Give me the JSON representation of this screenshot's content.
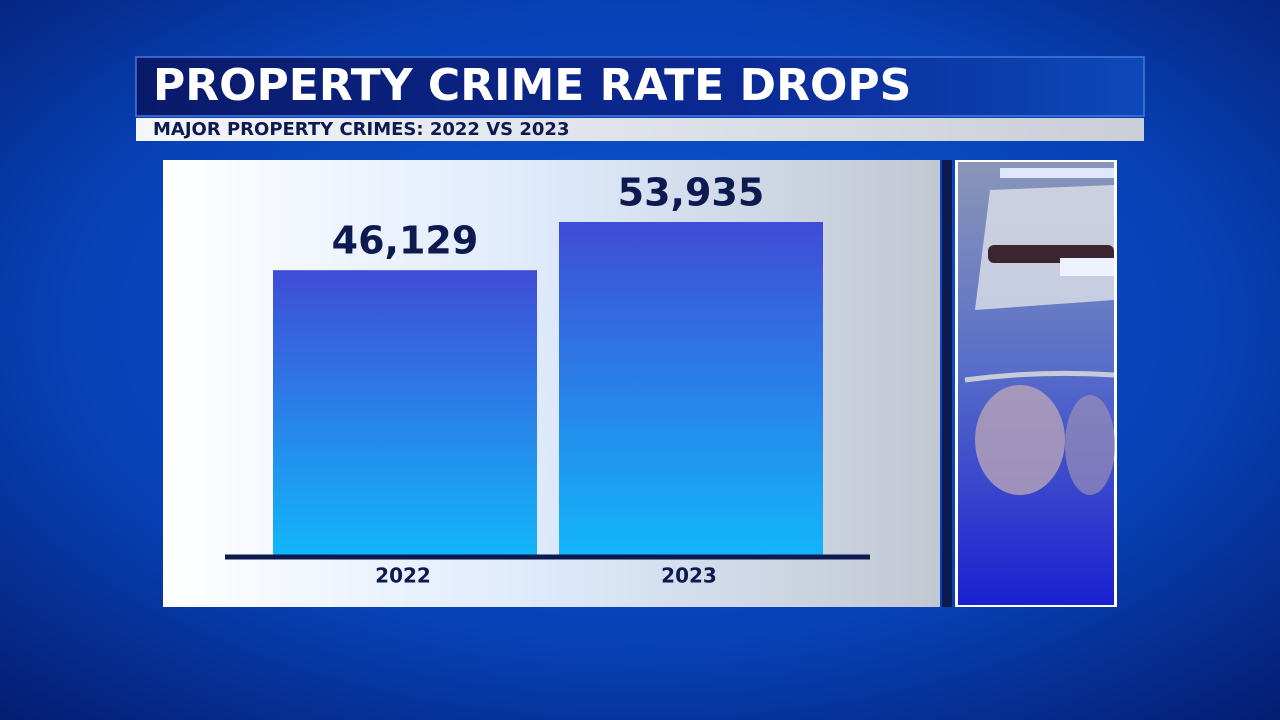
{
  "chart_data": {
    "type": "bar",
    "title": "PROPERTY CRIME RATE DROPS",
    "subtitle": "MAJOR PROPERTY CRIMES: 2022 VS 2023",
    "categories": [
      "2022",
      "2023"
    ],
    "values": [
      46129,
      53935
    ],
    "value_labels": [
      "46,129",
      "53,935"
    ]
  }
}
